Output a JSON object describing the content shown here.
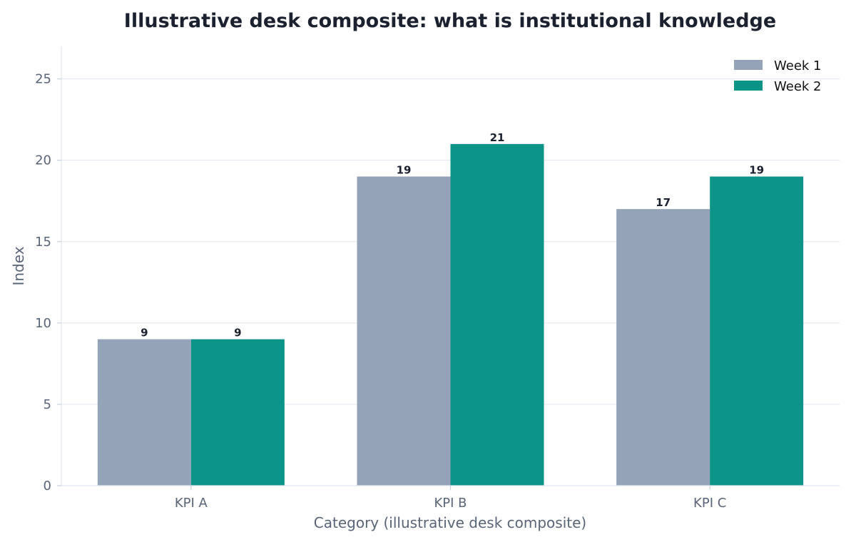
{
  "chart_data": {
    "type": "bar",
    "title": "Illustrative desk composite: what is institutional knowledge",
    "xlabel": "Category (illustrative desk composite)",
    "ylabel": "Index",
    "categories": [
      "KPI A",
      "KPI B",
      "KPI C"
    ],
    "series": [
      {
        "name": "Week 1",
        "values": [
          9,
          19,
          17
        ],
        "color": "#94a3b8"
      },
      {
        "name": "Week 2",
        "values": [
          9,
          21,
          19
        ],
        "color": "#0d9488"
      }
    ],
    "ylim": [
      0,
      27
    ],
    "yticks": [
      0,
      5,
      10,
      15,
      20,
      25
    ],
    "grid": "horizontal",
    "legend_position": "top-right",
    "colors": {
      "axis": "#e2e8f0",
      "grid": "#e5e9ef",
      "tick_text": "#5a6478",
      "title": "#1c2130"
    }
  }
}
